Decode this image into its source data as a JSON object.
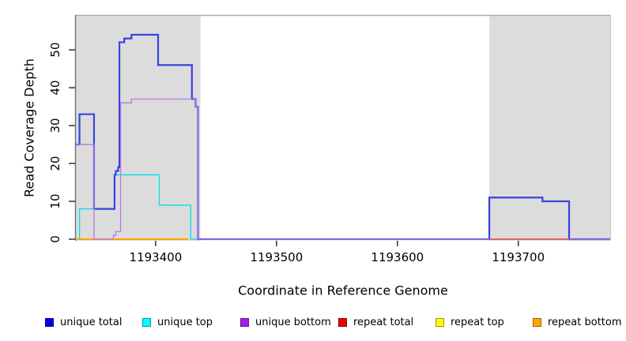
{
  "axes": {
    "ylabel": "Read Coverage Depth",
    "xlabel": "Coordinate in Reference Genome"
  },
  "chart_data": {
    "type": "line",
    "step": "after",
    "title": "",
    "xlabel": "Coordinate in Reference Genome",
    "ylabel": "Read Coverage Depth",
    "xlim": [
      1193334,
      1193776
    ],
    "ylim": [
      0,
      59
    ],
    "grid": false,
    "x_ticks": [
      {
        "value": 1193400,
        "label": "1193400"
      },
      {
        "value": 1193500,
        "label": "1193500"
      },
      {
        "value": 1193600,
        "label": "1193600"
      },
      {
        "value": 1193700,
        "label": "1193700"
      }
    ],
    "y_ticks": [
      {
        "value": 0,
        "label": "0"
      },
      {
        "value": 10,
        "label": "10"
      },
      {
        "value": 20,
        "label": "20"
      },
      {
        "value": 30,
        "label": "30"
      },
      {
        "value": 40,
        "label": "40"
      },
      {
        "value": 50,
        "label": "50"
      }
    ],
    "shaded_regions": [
      {
        "x_start": 1193334,
        "x_end": 1193437,
        "fill": "#DCDCDC"
      },
      {
        "x_start": 1193676,
        "x_end": 1193776,
        "fill": "#DCDCDC"
      }
    ],
    "render_order": [
      "unique top",
      "unique total",
      "repeat top",
      "repeat bottom",
      "unique bottom",
      "repeat total"
    ],
    "series": [
      {
        "name": "unique total",
        "color": "#3742E0",
        "line_width": 2.2,
        "points": [
          [
            1193334,
            25
          ],
          [
            1193337,
            33
          ],
          [
            1193349,
            8
          ],
          [
            1193366,
            17
          ],
          [
            1193367,
            18
          ],
          [
            1193369,
            19
          ],
          [
            1193370,
            52
          ],
          [
            1193374,
            53
          ],
          [
            1193380,
            54
          ],
          [
            1193402,
            46
          ],
          [
            1193430,
            37
          ],
          [
            1193433,
            35
          ],
          [
            1193435,
            0
          ],
          [
            1193676,
            11
          ],
          [
            1193720,
            10
          ],
          [
            1193742,
            0
          ]
        ],
        "end_x": 1193776
      },
      {
        "name": "unique top",
        "color": "#00E0EC",
        "line_width": 1.3,
        "points": [
          [
            1193334,
            0
          ],
          [
            1193337,
            8
          ],
          [
            1193366,
            17
          ],
          [
            1193403,
            9
          ],
          [
            1193429,
            0
          ]
        ],
        "end_x": 1193437
      },
      {
        "name": "unique bottom",
        "color": "#B478E8",
        "line_width": 1.3,
        "points": [
          [
            1193334,
            25
          ],
          [
            1193349,
            0
          ],
          [
            1193365,
            1
          ],
          [
            1193367,
            2
          ],
          [
            1193371,
            36
          ],
          [
            1193380,
            37
          ],
          [
            1193433,
            35
          ],
          [
            1193435,
            0
          ]
        ],
        "end_x": 1193776
      },
      {
        "name": "repeat total",
        "color": "#E04545",
        "line_width": 1.5,
        "points": [
          [
            1193676,
            0
          ]
        ],
        "end_x": 1193742
      },
      {
        "name": "repeat top",
        "color": "#FFFF00",
        "line_width": 1.5,
        "points": [
          [
            1193334,
            0
          ]
        ],
        "end_x": 1193427
      },
      {
        "name": "repeat bottom",
        "color": "#FFA500",
        "line_width": 2,
        "points": [
          [
            1193334,
            0
          ]
        ],
        "end_x": 1193427
      }
    ]
  },
  "legend": {
    "items": [
      {
        "label": "unique total",
        "color": "#0000EE"
      },
      {
        "label": "unique top",
        "color": "#00FFFF"
      },
      {
        "label": "unique bottom",
        "color": "#A020F0"
      },
      {
        "label": "repeat total",
        "color": "#EE0000"
      },
      {
        "label": "repeat top",
        "color": "#FFFF00"
      },
      {
        "label": "repeat bottom",
        "color": "#FFA500"
      }
    ]
  }
}
